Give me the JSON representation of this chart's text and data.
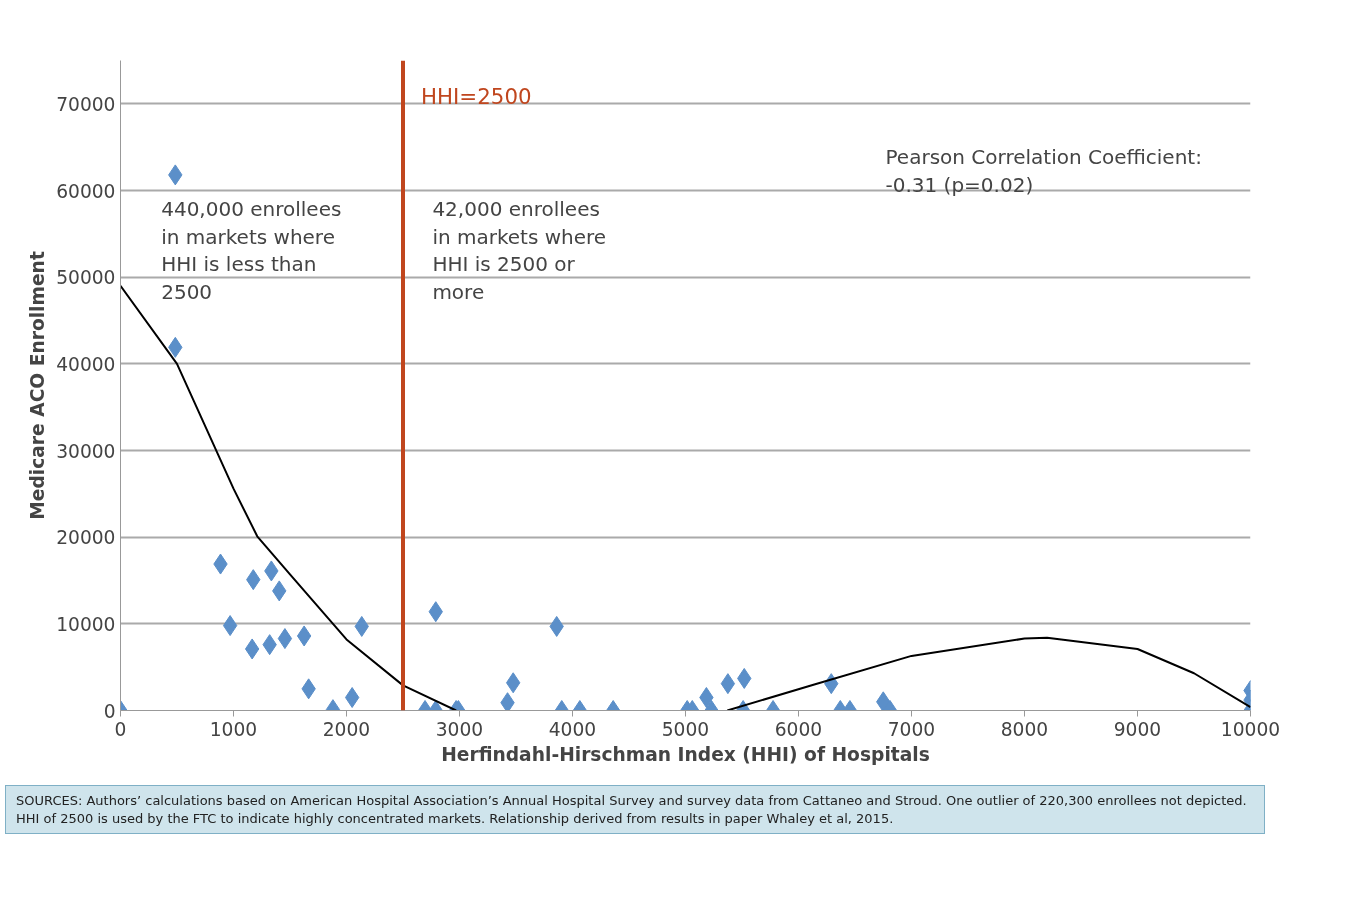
{
  "chart_data": {
    "type": "scatter",
    "xlabel": "Herfindahl-Hirschman Index (HHI) of Hospitals",
    "ylabel": "Medicare ACO Enrollment",
    "xlim": [
      0,
      10000
    ],
    "xticks": [
      0,
      1000,
      2000,
      3000,
      4000,
      5000,
      6000,
      7000,
      8000,
      9000,
      10000
    ],
    "ylim": [
      0,
      75000
    ],
    "yticks": [
      0,
      10000,
      20000,
      30000,
      40000,
      50000,
      60000,
      70000
    ],
    "grid": "y",
    "marker": "diamond",
    "series": [
      {
        "color": "#5b8fc9",
        "x": [
          0,
          485,
          485,
          885,
          970,
          1175,
          1165,
          1335,
          1320,
          1405,
          1455,
          1625,
          1665,
          1880,
          2050,
          2135,
          2695,
          2790,
          2790,
          2970,
          2990,
          3425,
          3475,
          3860,
          3905,
          4065,
          4360,
          5015,
          5060,
          5185,
          5230,
          5375,
          5510,
          5520,
          5775,
          6290,
          6370,
          6455,
          6750,
          6810,
          10000,
          10000,
          10000
        ],
        "values": [
          0,
          61800,
          41900,
          16900,
          9800,
          15100,
          7100,
          16100,
          7600,
          13800,
          8300,
          8600,
          2500,
          100,
          1500,
          9700,
          0,
          11400,
          0,
          0,
          0,
          900,
          3200,
          9700,
          0,
          0,
          0,
          0,
          0,
          1500,
          0,
          3100,
          0,
          3700,
          0,
          3100,
          0,
          0,
          1000,
          0,
          2300,
          1200,
          0
        ]
      },
      {
        "type": "line",
        "color": "#000000",
        "marker": "none",
        "x": [
          0,
          500,
          1000,
          1210,
          1500,
          2000,
          2500,
          2970
        ],
        "values": [
          49000,
          40000,
          25600,
          20100,
          15700,
          8200,
          2900,
          0
        ]
      },
      {
        "type": "line",
        "color": "#000000",
        "marker": "none",
        "x": [
          5370,
          6140,
          7000,
          8000,
          8200,
          9000,
          9500,
          10000
        ],
        "values": [
          0,
          3000,
          6300,
          8300,
          8400,
          7100,
          4300,
          400
        ]
      }
    ],
    "ref_lines": [
      {
        "axis": "x",
        "value": 2500,
        "label": "HHI=2500",
        "color": "#c0461e"
      }
    ],
    "annotations": [
      "440,000 enrollees\nin markets where\nHHI  is less than\n2500",
      "42,000 enrollees\nin markets where\nHHI is 2500 or\nmore",
      "Pearson Correlation Coefficient:\n-0.31 (p=0.02)",
      "SOURCES: Authors’ calculations based on American Hospital Association’s Annual Hospital Survey and survey data from Cattaneo and Stroud. One outlier of 220,300 enrollees not depicted. HHI of 2500 is used by the FTC to indicate highly concentrated markets. Relationship derived from results in paper Whaley et al, 2015."
    ]
  }
}
